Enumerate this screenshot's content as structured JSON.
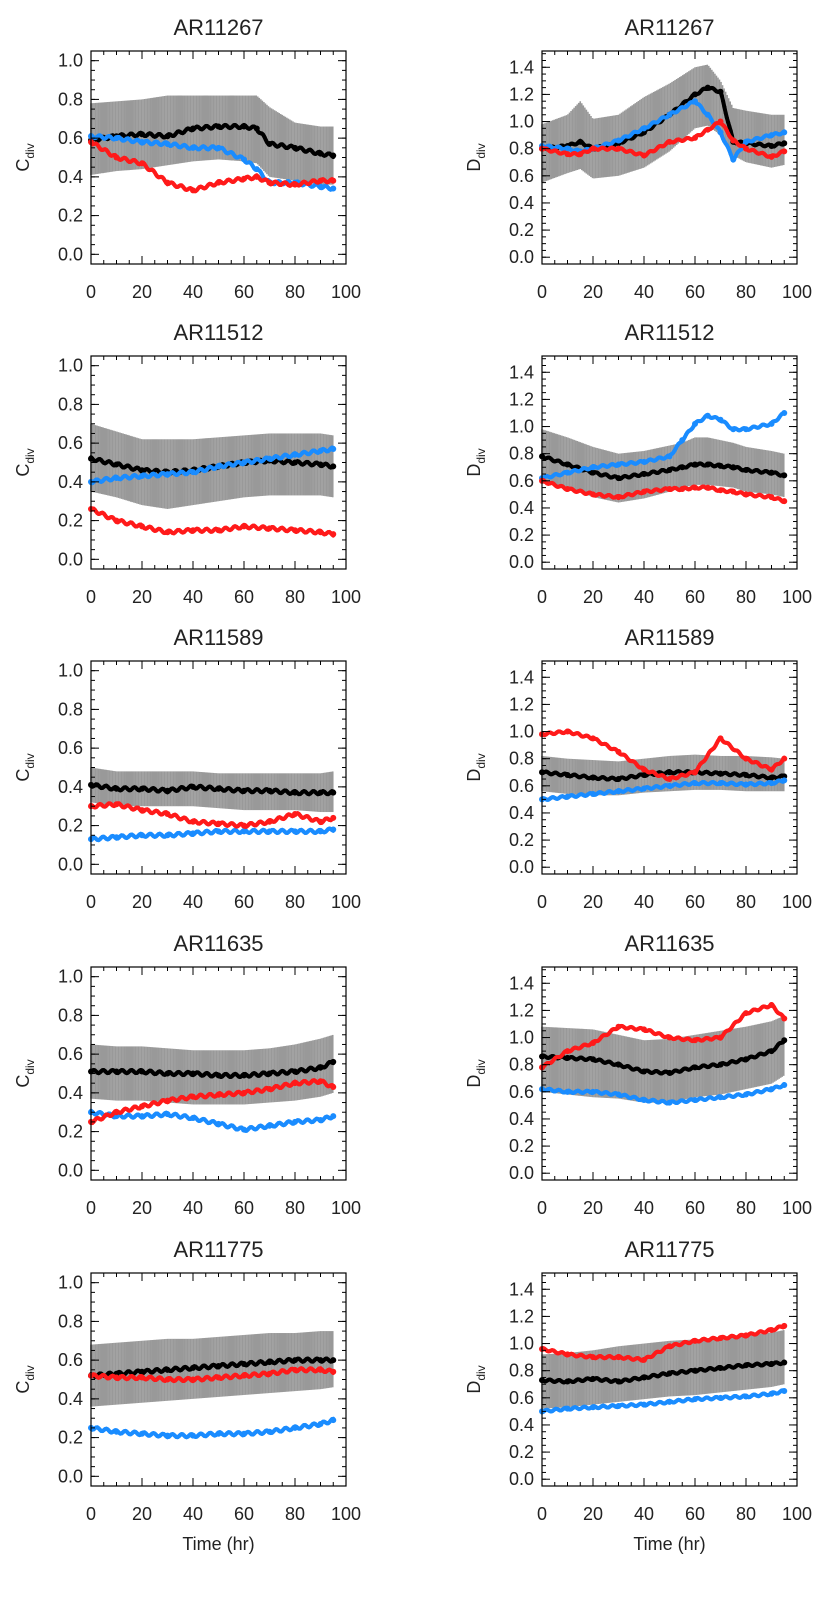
{
  "chart_data": [
    {
      "type": "line",
      "title": "AR11267",
      "ylabel": "C",
      "ylabel_sub": "div",
      "xlabel": "",
      "xlim": [
        0,
        100
      ],
      "ylim": [
        -0.05,
        1.05
      ],
      "xticks": [
        "0",
        "20",
        "40",
        "60",
        "80",
        "100"
      ],
      "yticks": [
        "0.0",
        "0.2",
        "0.4",
        "0.6",
        "0.8",
        "1.0"
      ],
      "x": [
        0,
        10,
        20,
        30,
        40,
        50,
        60,
        65,
        70,
        80,
        90,
        95
      ],
      "band": {
        "lower": [
          0.41,
          0.43,
          0.44,
          0.46,
          0.48,
          0.49,
          0.48,
          0.47,
          0.4,
          0.38,
          0.36,
          0.36
        ],
        "upper": [
          0.78,
          0.79,
          0.8,
          0.82,
          0.82,
          0.82,
          0.82,
          0.82,
          0.76,
          0.68,
          0.66,
          0.66
        ]
      },
      "series": [
        {
          "color": "#000000",
          "values": [
            0.59,
            0.61,
            0.62,
            0.61,
            0.65,
            0.66,
            0.66,
            0.65,
            0.57,
            0.55,
            0.52,
            0.51
          ]
        },
        {
          "color": "#1a8cff",
          "values": [
            0.61,
            0.6,
            0.58,
            0.57,
            0.55,
            0.55,
            0.49,
            0.44,
            0.37,
            0.37,
            0.35,
            0.34
          ]
        },
        {
          "color": "#ff1a1a",
          "values": [
            0.58,
            0.5,
            0.47,
            0.37,
            0.33,
            0.37,
            0.39,
            0.4,
            0.37,
            0.36,
            0.38,
            0.38
          ]
        }
      ]
    },
    {
      "type": "line",
      "title": "AR11267",
      "ylabel": "D",
      "ylabel_sub": "div",
      "xlabel": "",
      "xlim": [
        0,
        100
      ],
      "ylim": [
        -0.05,
        1.52
      ],
      "xticks": [
        "0",
        "20",
        "40",
        "60",
        "80",
        "100"
      ],
      "yticks": [
        "0.0",
        "0.2",
        "0.4",
        "0.6",
        "0.8",
        "1.0",
        "1.2",
        "1.4"
      ],
      "x": [
        0,
        10,
        15,
        20,
        30,
        40,
        50,
        60,
        65,
        70,
        75,
        80,
        90,
        95
      ],
      "band": {
        "lower": [
          0.55,
          0.62,
          0.65,
          0.58,
          0.6,
          0.66,
          0.78,
          0.95,
          0.97,
          0.9,
          0.75,
          0.7,
          0.66,
          0.68
        ],
        "upper": [
          0.98,
          1.05,
          1.15,
          1.02,
          1.05,
          1.18,
          1.28,
          1.4,
          1.42,
          1.3,
          1.1,
          1.08,
          1.05,
          1.05
        ]
      },
      "series": [
        {
          "color": "#000000",
          "values": [
            0.8,
            0.82,
            0.85,
            0.8,
            0.84,
            0.92,
            1.05,
            1.2,
            1.25,
            1.22,
            0.85,
            0.84,
            0.82,
            0.84
          ]
        },
        {
          "color": "#1a8cff",
          "values": [
            0.82,
            0.8,
            0.78,
            0.8,
            0.86,
            0.95,
            1.05,
            1.15,
            1.05,
            0.92,
            0.72,
            0.85,
            0.9,
            0.92
          ]
        },
        {
          "color": "#ff1a1a",
          "values": [
            0.8,
            0.76,
            0.76,
            0.8,
            0.8,
            0.75,
            0.85,
            0.88,
            0.94,
            1.0,
            0.86,
            0.8,
            0.74,
            0.78
          ]
        }
      ]
    },
    {
      "type": "line",
      "title": "AR11512",
      "ylabel": "C",
      "ylabel_sub": "div",
      "xlabel": "",
      "xlim": [
        0,
        100
      ],
      "ylim": [
        -0.05,
        1.05
      ],
      "xticks": [
        "0",
        "20",
        "40",
        "60",
        "80",
        "100"
      ],
      "yticks": [
        "0.0",
        "0.2",
        "0.4",
        "0.6",
        "0.8",
        "1.0"
      ],
      "x": [
        0,
        10,
        20,
        30,
        40,
        50,
        60,
        70,
        80,
        90,
        95
      ],
      "band": {
        "lower": [
          0.35,
          0.32,
          0.28,
          0.26,
          0.28,
          0.3,
          0.32,
          0.33,
          0.33,
          0.33,
          0.32
        ],
        "upper": [
          0.7,
          0.66,
          0.62,
          0.62,
          0.62,
          0.63,
          0.64,
          0.65,
          0.65,
          0.65,
          0.64
        ]
      },
      "series": [
        {
          "color": "#000000",
          "values": [
            0.52,
            0.49,
            0.46,
            0.45,
            0.46,
            0.48,
            0.5,
            0.51,
            0.5,
            0.49,
            0.48
          ]
        },
        {
          "color": "#1a8cff",
          "values": [
            0.4,
            0.42,
            0.43,
            0.44,
            0.45,
            0.48,
            0.5,
            0.52,
            0.54,
            0.56,
            0.57
          ]
        },
        {
          "color": "#ff1a1a",
          "values": [
            0.26,
            0.2,
            0.17,
            0.14,
            0.15,
            0.15,
            0.17,
            0.16,
            0.15,
            0.14,
            0.13
          ]
        }
      ]
    },
    {
      "type": "line",
      "title": "AR11512",
      "ylabel": "D",
      "ylabel_sub": "div",
      "xlabel": "",
      "xlim": [
        0,
        100
      ],
      "ylim": [
        -0.05,
        1.52
      ],
      "xticks": [
        "0",
        "20",
        "40",
        "60",
        "80",
        "100"
      ],
      "yticks": [
        "0.0",
        "0.2",
        "0.4",
        "0.6",
        "0.8",
        "1.0",
        "1.2",
        "1.4"
      ],
      "x": [
        0,
        10,
        20,
        30,
        40,
        50,
        55,
        60,
        65,
        70,
        75,
        80,
        90,
        95
      ],
      "band": {
        "lower": [
          0.58,
          0.55,
          0.48,
          0.44,
          0.47,
          0.52,
          0.55,
          0.57,
          0.57,
          0.56,
          0.55,
          0.52,
          0.5,
          0.48
        ],
        "upper": [
          0.98,
          0.92,
          0.85,
          0.8,
          0.82,
          0.86,
          0.88,
          0.92,
          0.92,
          0.9,
          0.88,
          0.85,
          0.82,
          0.8
        ]
      },
      "series": [
        {
          "color": "#000000",
          "values": [
            0.78,
            0.72,
            0.66,
            0.62,
            0.65,
            0.68,
            0.7,
            0.72,
            0.72,
            0.71,
            0.7,
            0.68,
            0.66,
            0.64
          ]
        },
        {
          "color": "#1a8cff",
          "values": [
            0.62,
            0.66,
            0.7,
            0.72,
            0.74,
            0.78,
            0.9,
            1.02,
            1.08,
            1.05,
            0.98,
            0.98,
            1.02,
            1.1
          ]
        },
        {
          "color": "#ff1a1a",
          "values": [
            0.6,
            0.54,
            0.5,
            0.48,
            0.52,
            0.54,
            0.54,
            0.55,
            0.55,
            0.53,
            0.52,
            0.5,
            0.48,
            0.45
          ]
        }
      ]
    },
    {
      "type": "line",
      "title": "AR11589",
      "ylabel": "C",
      "ylabel_sub": "div",
      "xlabel": "",
      "xlim": [
        0,
        100
      ],
      "ylim": [
        -0.05,
        1.05
      ],
      "xticks": [
        "0",
        "20",
        "40",
        "60",
        "80",
        "100"
      ],
      "yticks": [
        "0.0",
        "0.2",
        "0.4",
        "0.6",
        "0.8",
        "1.0"
      ],
      "x": [
        0,
        10,
        20,
        30,
        40,
        50,
        60,
        70,
        80,
        90,
        95
      ],
      "band": {
        "lower": [
          0.32,
          0.3,
          0.3,
          0.3,
          0.3,
          0.29,
          0.28,
          0.28,
          0.28,
          0.27,
          0.27
        ],
        "upper": [
          0.5,
          0.48,
          0.48,
          0.48,
          0.48,
          0.47,
          0.47,
          0.47,
          0.47,
          0.47,
          0.48
        ]
      },
      "series": [
        {
          "color": "#000000",
          "values": [
            0.41,
            0.39,
            0.39,
            0.38,
            0.4,
            0.39,
            0.38,
            0.38,
            0.37,
            0.37,
            0.37
          ]
        },
        {
          "color": "#1a8cff",
          "values": [
            0.13,
            0.14,
            0.15,
            0.15,
            0.16,
            0.17,
            0.17,
            0.17,
            0.17,
            0.17,
            0.18
          ]
        },
        {
          "color": "#ff1a1a",
          "values": [
            0.3,
            0.31,
            0.28,
            0.26,
            0.22,
            0.21,
            0.2,
            0.22,
            0.26,
            0.22,
            0.24
          ]
        }
      ]
    },
    {
      "type": "line",
      "title": "AR11589",
      "ylabel": "D",
      "ylabel_sub": "div",
      "xlabel": "",
      "xlim": [
        0,
        100
      ],
      "ylim": [
        -0.05,
        1.52
      ],
      "xticks": [
        "0",
        "20",
        "40",
        "60",
        "80",
        "100"
      ],
      "yticks": [
        "0.0",
        "0.2",
        "0.4",
        "0.6",
        "0.8",
        "1.0",
        "1.2",
        "1.4"
      ],
      "x": [
        0,
        10,
        20,
        30,
        40,
        50,
        60,
        70,
        80,
        90,
        95
      ],
      "band": {
        "lower": [
          0.56,
          0.54,
          0.53,
          0.53,
          0.55,
          0.56,
          0.57,
          0.57,
          0.56,
          0.56,
          0.56
        ],
        "upper": [
          0.82,
          0.8,
          0.79,
          0.78,
          0.8,
          0.82,
          0.83,
          0.82,
          0.82,
          0.81,
          0.8
        ]
      },
      "series": [
        {
          "color": "#000000",
          "values": [
            0.7,
            0.68,
            0.66,
            0.65,
            0.68,
            0.7,
            0.7,
            0.69,
            0.68,
            0.66,
            0.67
          ]
        },
        {
          "color": "#1a8cff",
          "values": [
            0.5,
            0.52,
            0.54,
            0.56,
            0.58,
            0.6,
            0.62,
            0.62,
            0.61,
            0.62,
            0.64
          ]
        },
        {
          "color": "#ff1a1a",
          "values": [
            0.98,
            1.0,
            0.95,
            0.85,
            0.72,
            0.65,
            0.7,
            0.95,
            0.8,
            0.72,
            0.8
          ]
        }
      ]
    },
    {
      "type": "line",
      "title": "AR11635",
      "ylabel": "C",
      "ylabel_sub": "div",
      "xlabel": "",
      "xlim": [
        0,
        100
      ],
      "ylim": [
        -0.05,
        1.05
      ],
      "xticks": [
        "0",
        "20",
        "40",
        "60",
        "80",
        "100"
      ],
      "yticks": [
        "0.0",
        "0.2",
        "0.4",
        "0.6",
        "0.8",
        "1.0"
      ],
      "x": [
        0,
        10,
        20,
        30,
        40,
        50,
        60,
        70,
        80,
        90,
        95
      ],
      "band": {
        "lower": [
          0.37,
          0.36,
          0.36,
          0.35,
          0.34,
          0.34,
          0.34,
          0.35,
          0.36,
          0.38,
          0.4
        ],
        "upper": [
          0.65,
          0.64,
          0.64,
          0.63,
          0.62,
          0.62,
          0.62,
          0.63,
          0.65,
          0.68,
          0.7
        ]
      },
      "series": [
        {
          "color": "#000000",
          "values": [
            0.51,
            0.51,
            0.51,
            0.5,
            0.5,
            0.49,
            0.49,
            0.5,
            0.51,
            0.53,
            0.56
          ]
        },
        {
          "color": "#1a8cff",
          "values": [
            0.3,
            0.28,
            0.28,
            0.29,
            0.27,
            0.24,
            0.21,
            0.23,
            0.25,
            0.26,
            0.28
          ]
        },
        {
          "color": "#ff1a1a",
          "values": [
            0.25,
            0.3,
            0.33,
            0.36,
            0.38,
            0.39,
            0.4,
            0.42,
            0.45,
            0.46,
            0.43
          ]
        }
      ]
    },
    {
      "type": "line",
      "title": "AR11635",
      "ylabel": "D",
      "ylabel_sub": "div",
      "xlabel": "",
      "xlim": [
        0,
        100
      ],
      "ylim": [
        -0.05,
        1.52
      ],
      "xticks": [
        "0",
        "20",
        "40",
        "60",
        "80",
        "100"
      ],
      "yticks": [
        "0.0",
        "0.2",
        "0.4",
        "0.6",
        "0.8",
        "1.0",
        "1.2",
        "1.4"
      ],
      "x": [
        0,
        10,
        20,
        30,
        40,
        50,
        60,
        70,
        80,
        90,
        95
      ],
      "band": {
        "lower": [
          0.6,
          0.58,
          0.56,
          0.55,
          0.52,
          0.52,
          0.56,
          0.58,
          0.62,
          0.66,
          0.72
        ],
        "upper": [
          1.08,
          1.07,
          1.06,
          1.02,
          0.98,
          0.99,
          1.02,
          1.05,
          1.08,
          1.12,
          1.16
        ]
      },
      "series": [
        {
          "color": "#000000",
          "values": [
            0.86,
            0.85,
            0.84,
            0.8,
            0.75,
            0.74,
            0.78,
            0.8,
            0.84,
            0.9,
            0.98
          ]
        },
        {
          "color": "#1a8cff",
          "values": [
            0.62,
            0.6,
            0.6,
            0.58,
            0.54,
            0.52,
            0.54,
            0.56,
            0.58,
            0.62,
            0.65
          ]
        },
        {
          "color": "#ff1a1a",
          "values": [
            0.78,
            0.9,
            0.96,
            1.08,
            1.06,
            1.0,
            0.98,
            1.0,
            1.18,
            1.24,
            1.14
          ]
        }
      ]
    },
    {
      "type": "line",
      "title": "AR11775",
      "ylabel": "C",
      "ylabel_sub": "div",
      "xlabel": "Time (hr)",
      "xlim": [
        0,
        100
      ],
      "ylim": [
        -0.05,
        1.05
      ],
      "xticks": [
        "0",
        "20",
        "40",
        "60",
        "80",
        "100"
      ],
      "yticks": [
        "0.0",
        "0.2",
        "0.4",
        "0.6",
        "0.8",
        "1.0"
      ],
      "x": [
        0,
        10,
        20,
        30,
        40,
        50,
        60,
        70,
        80,
        90,
        95
      ],
      "band": {
        "lower": [
          0.36,
          0.37,
          0.38,
          0.39,
          0.4,
          0.41,
          0.42,
          0.43,
          0.44,
          0.45,
          0.46
        ],
        "upper": [
          0.68,
          0.69,
          0.7,
          0.71,
          0.71,
          0.72,
          0.73,
          0.74,
          0.74,
          0.75,
          0.75
        ]
      },
      "series": [
        {
          "color": "#000000",
          "values": [
            0.52,
            0.53,
            0.54,
            0.55,
            0.56,
            0.57,
            0.58,
            0.59,
            0.6,
            0.6,
            0.6
          ]
        },
        {
          "color": "#1a8cff",
          "values": [
            0.25,
            0.23,
            0.22,
            0.21,
            0.21,
            0.22,
            0.22,
            0.23,
            0.25,
            0.27,
            0.29
          ]
        },
        {
          "color": "#ff1a1a",
          "values": [
            0.52,
            0.51,
            0.51,
            0.5,
            0.5,
            0.51,
            0.52,
            0.53,
            0.55,
            0.55,
            0.54
          ]
        }
      ]
    },
    {
      "type": "line",
      "title": "AR11775",
      "ylabel": "D",
      "ylabel_sub": "div",
      "xlabel": "Time (hr)",
      "xlim": [
        0,
        100
      ],
      "ylim": [
        -0.05,
        1.52
      ],
      "xticks": [
        "0",
        "20",
        "40",
        "60",
        "80",
        "100"
      ],
      "yticks": [
        "0.0",
        "0.2",
        "0.4",
        "0.6",
        "0.8",
        "1.0",
        "1.2",
        "1.4"
      ],
      "x": [
        0,
        10,
        20,
        30,
        40,
        50,
        60,
        70,
        80,
        90,
        95
      ],
      "band": {
        "lower": [
          0.52,
          0.53,
          0.55,
          0.57,
          0.59,
          0.61,
          0.62,
          0.64,
          0.66,
          0.68,
          0.7
        ],
        "upper": [
          0.92,
          0.93,
          0.95,
          0.98,
          1.0,
          1.02,
          1.03,
          1.05,
          1.06,
          1.08,
          1.1
        ]
      },
      "series": [
        {
          "color": "#000000",
          "values": [
            0.73,
            0.72,
            0.74,
            0.72,
            0.75,
            0.78,
            0.8,
            0.82,
            0.84,
            0.85,
            0.86
          ]
        },
        {
          "color": "#1a8cff",
          "values": [
            0.5,
            0.52,
            0.53,
            0.54,
            0.55,
            0.57,
            0.59,
            0.6,
            0.61,
            0.63,
            0.65
          ]
        },
        {
          "color": "#ff1a1a",
          "values": [
            0.96,
            0.92,
            0.9,
            0.9,
            0.88,
            0.98,
            1.02,
            1.04,
            1.06,
            1.1,
            1.13
          ]
        }
      ]
    }
  ]
}
